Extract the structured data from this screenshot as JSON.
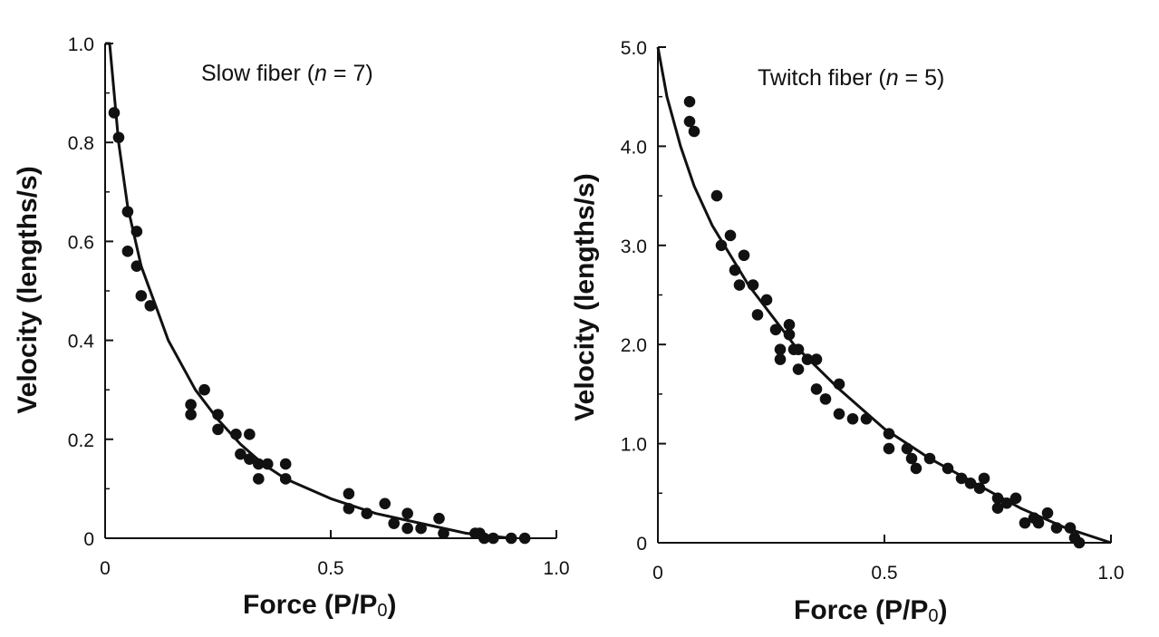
{
  "chart_data": [
    {
      "type": "scatter",
      "title_prefix": "Slow fiber (",
      "title_n": "n",
      "title_suffix": " = 7)",
      "xlabel": "Force  (P/P",
      "xlabel_sub": "0",
      "xlabel_end": ")",
      "ylabel": "Velocity  (lengths/s)",
      "xlim": [
        0,
        1.0
      ],
      "ylim": [
        0,
        1.0
      ],
      "xticks": [
        "0",
        "0.5",
        "1.0"
      ],
      "xtick_values": [
        0,
        0.5,
        1.0
      ],
      "yticks": [
        "0",
        "0.2",
        "0.4",
        "0.6",
        "0.8",
        "1.0"
      ],
      "ytick_values": [
        0,
        0.2,
        0.4,
        0.6,
        0.8,
        1.0
      ],
      "points": [
        [
          0.02,
          0.86
        ],
        [
          0.03,
          0.81
        ],
        [
          0.05,
          0.66
        ],
        [
          0.05,
          0.58
        ],
        [
          0.07,
          0.62
        ],
        [
          0.07,
          0.55
        ],
        [
          0.08,
          0.49
        ],
        [
          0.1,
          0.47
        ],
        [
          0.19,
          0.27
        ],
        [
          0.19,
          0.25
        ],
        [
          0.22,
          0.3
        ],
        [
          0.25,
          0.25
        ],
        [
          0.25,
          0.22
        ],
        [
          0.29,
          0.21
        ],
        [
          0.3,
          0.17
        ],
        [
          0.32,
          0.21
        ],
        [
          0.32,
          0.16
        ],
        [
          0.34,
          0.15
        ],
        [
          0.34,
          0.12
        ],
        [
          0.36,
          0.15
        ],
        [
          0.4,
          0.15
        ],
        [
          0.4,
          0.12
        ],
        [
          0.54,
          0.09
        ],
        [
          0.54,
          0.06
        ],
        [
          0.58,
          0.05
        ],
        [
          0.62,
          0.07
        ],
        [
          0.64,
          0.03
        ],
        [
          0.67,
          0.05
        ],
        [
          0.67,
          0.02
        ],
        [
          0.7,
          0.02
        ],
        [
          0.74,
          0.04
        ],
        [
          0.75,
          0.01
        ],
        [
          0.82,
          0.01
        ],
        [
          0.83,
          0.01
        ],
        [
          0.84,
          0.0
        ],
        [
          0.86,
          0.0
        ],
        [
          0.9,
          0.0
        ],
        [
          0.93,
          0.0
        ]
      ],
      "fit": [
        [
          0.0,
          1.0
        ],
        [
          0.01,
          1.0
        ],
        [
          0.03,
          0.8
        ],
        [
          0.05,
          0.67
        ],
        [
          0.08,
          0.55
        ],
        [
          0.12,
          0.45
        ],
        [
          0.14,
          0.4
        ],
        [
          0.2,
          0.3
        ],
        [
          0.25,
          0.24
        ],
        [
          0.3,
          0.19
        ],
        [
          0.35,
          0.15
        ],
        [
          0.4,
          0.12
        ],
        [
          0.5,
          0.08
        ],
        [
          0.6,
          0.05
        ],
        [
          0.7,
          0.03
        ],
        [
          0.8,
          0.01
        ],
        [
          0.9,
          0.0
        ]
      ]
    },
    {
      "type": "scatter",
      "title_prefix": "Twitch fiber (",
      "title_n": "n",
      "title_suffix": " = 5)",
      "xlabel": "Force  (P/P",
      "xlabel_sub": "0",
      "xlabel_end": ")",
      "ylabel": "Velocity  (lengths/s)",
      "xlim": [
        0,
        1.0
      ],
      "ylim": [
        0,
        5.0
      ],
      "xticks": [
        "0",
        "0.5",
        "1.0"
      ],
      "xtick_values": [
        0,
        0.5,
        1.0
      ],
      "yticks": [
        "0",
        "1.0",
        "2.0",
        "3.0",
        "4.0",
        "5.0"
      ],
      "ytick_values": [
        0,
        1,
        2,
        3,
        4,
        5
      ],
      "points": [
        [
          0.07,
          4.45
        ],
        [
          0.07,
          4.25
        ],
        [
          0.08,
          4.15
        ],
        [
          0.13,
          3.5
        ],
        [
          0.14,
          3.0
        ],
        [
          0.16,
          3.1
        ],
        [
          0.17,
          2.75
        ],
        [
          0.18,
          2.6
        ],
        [
          0.19,
          2.9
        ],
        [
          0.21,
          2.6
        ],
        [
          0.22,
          2.3
        ],
        [
          0.24,
          2.45
        ],
        [
          0.26,
          2.15
        ],
        [
          0.27,
          1.95
        ],
        [
          0.27,
          1.85
        ],
        [
          0.29,
          2.2
        ],
        [
          0.29,
          2.1
        ],
        [
          0.3,
          1.95
        ],
        [
          0.31,
          1.95
        ],
        [
          0.31,
          1.75
        ],
        [
          0.33,
          1.85
        ],
        [
          0.35,
          1.85
        ],
        [
          0.35,
          1.55
        ],
        [
          0.37,
          1.45
        ],
        [
          0.4,
          1.6
        ],
        [
          0.4,
          1.3
        ],
        [
          0.43,
          1.25
        ],
        [
          0.46,
          1.25
        ],
        [
          0.51,
          1.1
        ],
        [
          0.51,
          0.95
        ],
        [
          0.55,
          0.95
        ],
        [
          0.56,
          0.85
        ],
        [
          0.57,
          0.75
        ],
        [
          0.6,
          0.85
        ],
        [
          0.64,
          0.75
        ],
        [
          0.67,
          0.65
        ],
        [
          0.69,
          0.6
        ],
        [
          0.71,
          0.55
        ],
        [
          0.72,
          0.65
        ],
        [
          0.75,
          0.45
        ],
        [
          0.75,
          0.35
        ],
        [
          0.77,
          0.4
        ],
        [
          0.79,
          0.45
        ],
        [
          0.81,
          0.2
        ],
        [
          0.83,
          0.25
        ],
        [
          0.84,
          0.2
        ],
        [
          0.86,
          0.3
        ],
        [
          0.88,
          0.15
        ],
        [
          0.91,
          0.15
        ],
        [
          0.92,
          0.05
        ],
        [
          0.93,
          0.0
        ]
      ],
      "fit": [
        [
          0.0,
          5.0
        ],
        [
          0.02,
          4.5
        ],
        [
          0.05,
          4.0
        ],
        [
          0.08,
          3.6
        ],
        [
          0.12,
          3.2
        ],
        [
          0.2,
          2.6
        ],
        [
          0.3,
          2.0
        ],
        [
          0.4,
          1.55
        ],
        [
          0.5,
          1.15
        ],
        [
          0.6,
          0.85
        ],
        [
          0.7,
          0.6
        ],
        [
          0.8,
          0.35
        ],
        [
          0.9,
          0.15
        ],
        [
          1.0,
          0.0
        ]
      ]
    }
  ]
}
